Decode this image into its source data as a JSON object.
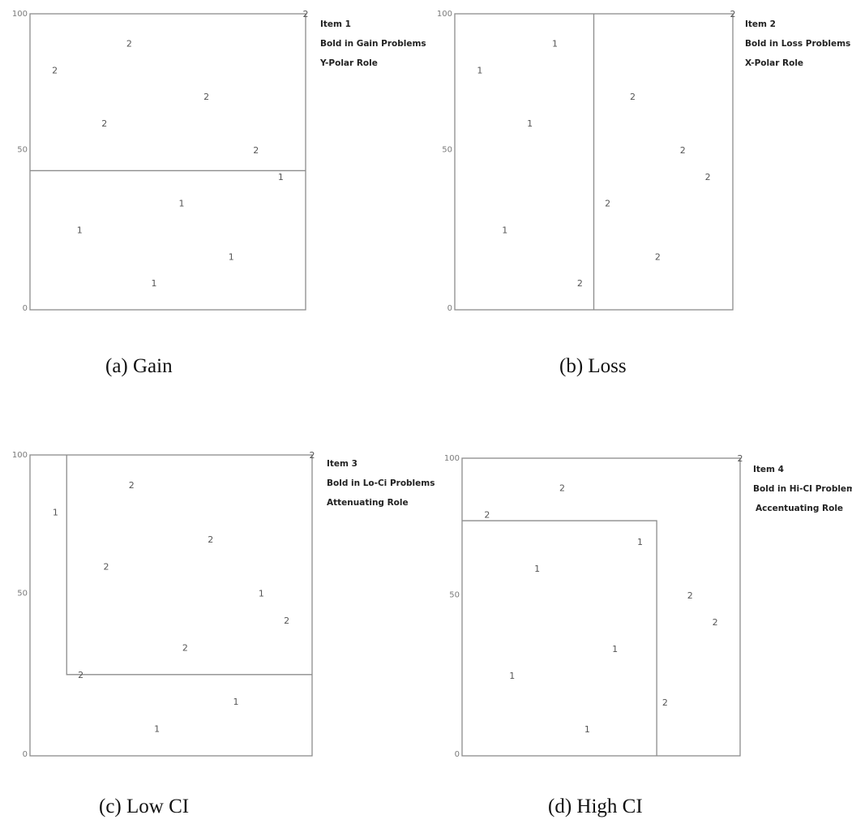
{
  "panels": [
    {
      "caption": "(a)  Gain",
      "item": "Item 1",
      "bold": "Bold in Gain Problems",
      "role": "Y-Polar Role",
      "axis": {
        "top": "100",
        "mid": "50",
        "bottom": "0"
      },
      "corner_label": "2",
      "region_divider": {
        "type": "horizontal",
        "y": 47
      },
      "points": [
        {
          "label": "2",
          "x": 9,
          "y": 81
        },
        {
          "label": "2",
          "x": 36,
          "y": 90
        },
        {
          "label": "2",
          "x": 27,
          "y": 63
        },
        {
          "label": "2",
          "x": 64,
          "y": 72
        },
        {
          "label": "2",
          "x": 82,
          "y": 54
        },
        {
          "label": "1",
          "x": 91,
          "y": 45
        },
        {
          "label": "1",
          "x": 55,
          "y": 36
        },
        {
          "label": "1",
          "x": 18,
          "y": 27
        },
        {
          "label": "1",
          "x": 73,
          "y": 18
        },
        {
          "label": "1",
          "x": 45,
          "y": 9
        }
      ]
    },
    {
      "caption": "(b) Loss",
      "item": "Item 2",
      "bold": "Bold in Loss Problems",
      "role": "X-Polar Role",
      "axis": {
        "top": "100",
        "mid": "50",
        "bottom": "0"
      },
      "corner_label": "2",
      "region_divider": {
        "type": "vertical",
        "x": 50
      },
      "points": [
        {
          "label": "1",
          "x": 9,
          "y": 81
        },
        {
          "label": "1",
          "x": 36,
          "y": 90
        },
        {
          "label": "1",
          "x": 27,
          "y": 63
        },
        {
          "label": "1",
          "x": 18,
          "y": 27
        },
        {
          "label": "2",
          "x": 64,
          "y": 72
        },
        {
          "label": "2",
          "x": 82,
          "y": 54
        },
        {
          "label": "2",
          "x": 91,
          "y": 45
        },
        {
          "label": "2",
          "x": 55,
          "y": 36
        },
        {
          "label": "2",
          "x": 73,
          "y": 18
        },
        {
          "label": "2",
          "x": 45,
          "y": 9
        }
      ]
    },
    {
      "caption": "(c) Low CI",
      "item": "Item 3",
      "bold": "Bold in Lo-Ci Problems",
      "role": "Attenuating Role",
      "axis": {
        "top": "100",
        "mid": "50",
        "bottom": "0"
      },
      "corner_label": "2",
      "region_divider": {
        "type": "corner-lower-left",
        "x": 13,
        "y": 27
      },
      "points": [
        {
          "label": "1",
          "x": 9,
          "y": 81
        },
        {
          "label": "2",
          "x": 36,
          "y": 90
        },
        {
          "label": "2",
          "x": 27,
          "y": 63
        },
        {
          "label": "2",
          "x": 64,
          "y": 72
        },
        {
          "label": "1",
          "x": 82,
          "y": 54
        },
        {
          "label": "2",
          "x": 91,
          "y": 45
        },
        {
          "label": "2",
          "x": 55,
          "y": 36
        },
        {
          "label": "2",
          "x": 18,
          "y": 27
        },
        {
          "label": "1",
          "x": 73,
          "y": 18
        },
        {
          "label": "1",
          "x": 45,
          "y": 9
        }
      ]
    },
    {
      "caption": "(d) High CI",
      "item": "Item 4",
      "bold": "Bold in Hi-CI Problems",
      "role": "Accentuating Role",
      "axis": {
        "top": "100",
        "mid": "50",
        "bottom": "0"
      },
      "corner_label": "2",
      "region_divider": {
        "type": "corner-upper-right",
        "x": 70,
        "y": 79
      },
      "points": [
        {
          "label": "2",
          "x": 9,
          "y": 81
        },
        {
          "label": "2",
          "x": 36,
          "y": 90
        },
        {
          "label": "1",
          "x": 27,
          "y": 63
        },
        {
          "label": "1",
          "x": 64,
          "y": 72
        },
        {
          "label": "2",
          "x": 82,
          "y": 54
        },
        {
          "label": "2",
          "x": 91,
          "y": 45
        },
        {
          "label": "1",
          "x": 55,
          "y": 36
        },
        {
          "label": "1",
          "x": 18,
          "y": 27
        },
        {
          "label": "2",
          "x": 73,
          "y": 18
        },
        {
          "label": "1",
          "x": 45,
          "y": 9
        }
      ]
    }
  ]
}
